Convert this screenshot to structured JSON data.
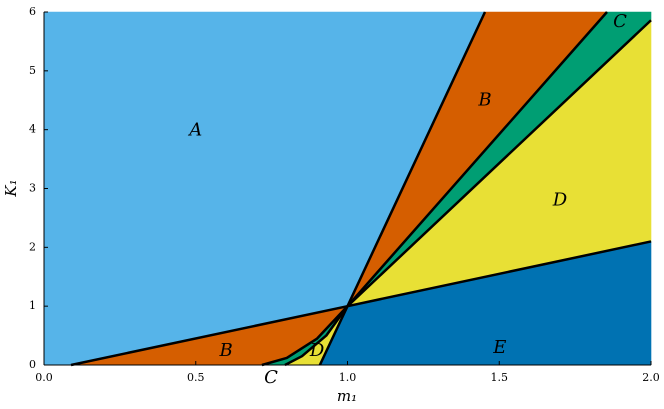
{
  "chart_data": {
    "type": "region",
    "xlabel": "m₁",
    "ylabel": "K₁",
    "xlim": [
      0,
      2
    ],
    "ylim": [
      0,
      6
    ],
    "xticks": [
      {
        "value": 0,
        "label": "0.0"
      },
      {
        "value": 0.5,
        "label": "0.5"
      },
      {
        "value": 1,
        "label": "1.0"
      },
      {
        "value": 1.5,
        "label": "1.5"
      },
      {
        "value": 2,
        "label": "2.0"
      }
    ],
    "yticks": [
      0,
      1,
      2,
      3,
      4,
      5,
      6
    ],
    "regions": [
      {
        "label": "A",
        "color": "#56b4e9",
        "points": [
          [
            0,
            0
          ],
          [
            0.089,
            0
          ],
          [
            1,
            1
          ],
          [
            1.453,
            6
          ],
          [
            0,
            6
          ]
        ],
        "label_at": [
          0.5,
          3.99
        ]
      },
      {
        "label": "B",
        "color": "#d55e00",
        "points": [
          [
            1,
            1
          ],
          [
            1.453,
            6
          ],
          [
            1.855,
            6
          ]
        ],
        "label_at": [
          1.453,
          4.5
        ]
      },
      {
        "label": "C",
        "color": "#009e73",
        "points": [
          [
            1,
            1
          ],
          [
            1.855,
            6
          ],
          [
            2,
            6
          ],
          [
            2,
            5.86
          ]
        ],
        "label_at": [
          1.898,
          5.83
        ]
      },
      {
        "label": "D",
        "color": "#e8e035",
        "points": [
          [
            1,
            1
          ],
          [
            2,
            5.86
          ],
          [
            2,
            2.1
          ]
        ],
        "label_at": [
          1.7,
          2.8
        ]
      },
      {
        "label": "E",
        "color": "#0072b2",
        "points": [
          [
            1,
            1
          ],
          [
            2,
            2.1
          ],
          [
            2,
            0
          ],
          [
            0.909,
            0
          ]
        ],
        "label_at": [
          1.502,
          0.29
        ]
      },
      {
        "label": "B",
        "color": "#d55e00",
        "points": [
          [
            0.089,
            0
          ],
          [
            1,
            1
          ],
          [
            0.9,
            0.45
          ],
          [
            0.8,
            0.12
          ],
          [
            0.718,
            0
          ]
        ],
        "label_at": [
          0.6,
          0.24
        ]
      },
      {
        "label": "C",
        "color": "#009e73",
        "points": [
          [
            0.718,
            0
          ],
          [
            0.8,
            0.12
          ],
          [
            0.9,
            0.45
          ],
          [
            1,
            1
          ],
          [
            0.93,
            0.5
          ],
          [
            0.85,
            0.15
          ],
          [
            0.794,
            0
          ]
        ],
        "label_at": [
          0.748,
          -0.22
        ]
      },
      {
        "label": "D",
        "color": "#e8e035",
        "points": [
          [
            0.794,
            0
          ],
          [
            0.85,
            0.15
          ],
          [
            0.93,
            0.5
          ],
          [
            1,
            1
          ],
          [
            0.909,
            0
          ]
        ],
        "label_at": [
          0.9,
          0.24
        ]
      }
    ],
    "boundaries": [
      [
        [
          0.089,
          0
        ],
        [
          1,
          1
        ],
        [
          2,
          2.1
        ]
      ],
      [
        [
          0.909,
          0
        ],
        [
          1,
          1
        ],
        [
          1.453,
          6
        ]
      ],
      [
        [
          0.718,
          0
        ],
        [
          0.8,
          0.12
        ],
        [
          0.9,
          0.45
        ],
        [
          1,
          1
        ],
        [
          1.855,
          6
        ]
      ],
      [
        [
          0.794,
          0
        ],
        [
          0.85,
          0.15
        ],
        [
          0.93,
          0.5
        ],
        [
          1,
          1
        ],
        [
          2,
          5.86
        ]
      ]
    ]
  }
}
